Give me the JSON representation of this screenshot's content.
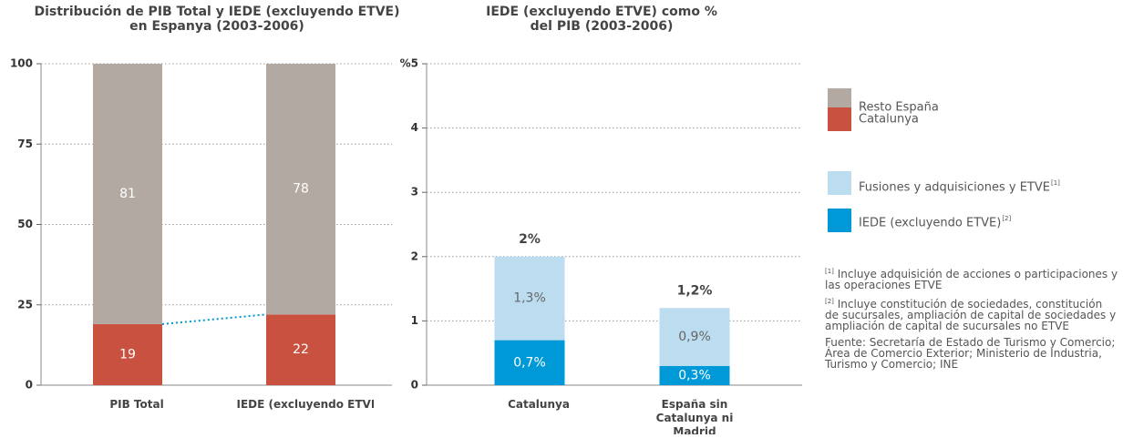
{
  "chart_data": [
    {
      "type": "stacked_bar",
      "title": [
        "Distribución de PIB Total y IEDE (excluyendo ETVE)",
        "en Espanya (2003-2006)"
      ],
      "categories": [
        "PIB Total",
        "IEDE (excluyendo ETVE)"
      ],
      "series": [
        {
          "name": "Catalunya",
          "color": "#c9513f",
          "label_color": "#ffffff",
          "values": [
            19,
            22
          ]
        },
        {
          "name": "Resto España",
          "color": "#b3a9a3",
          "label_color": "#ffffff",
          "values": [
            81,
            78
          ]
        }
      ],
      "ylim": [
        0,
        100
      ],
      "yticks": [
        0,
        25,
        50,
        75,
        100
      ],
      "grid": true
    },
    {
      "type": "stacked_bar",
      "title": [
        "IEDE (excluyendo ETVE) como %",
        "del PIB (2003-2006)"
      ],
      "categories": [
        "Catalunya",
        "España sin Catalunya ni Madrid"
      ],
      "series": [
        {
          "name": "IEDE (excluyendo ETVE)",
          "note_ref": "[2]",
          "color": "#0099d8",
          "label_color": "#ffffff",
          "values": [
            0.7,
            0.3
          ],
          "value_labels": [
            "0,7%",
            "0,3%"
          ]
        },
        {
          "name": "Fusiones y adquisiciones y ETVE",
          "note_ref": "[1]",
          "color": "#bcdcf0",
          "label_color": "#666666",
          "values": [
            1.3,
            0.9
          ],
          "value_labels": [
            "1,3%",
            "0,9%"
          ]
        }
      ],
      "totals": {
        "values": [
          2,
          1.2
        ],
        "value_labels": [
          "2%",
          "1,2%"
        ]
      },
      "ylim": [
        0,
        5
      ],
      "yticks": [
        0,
        1,
        2,
        3,
        4,
        {
          "value": 5,
          "label": "%5"
        }
      ],
      "grid": true
    }
  ],
  "notes": [
    {
      "ref": "[1]",
      "text": "Incluye adquisición de acciones o participaciones y las operaciones ETVE"
    },
    {
      "ref": "[2]",
      "text": "Incluye constitución de sociedades, constitución de sucursales, ampliación de capital de sociedades y ampliación de capital de sucursales no ETVE"
    }
  ],
  "source": "Fuente: Secretaría de Estado de Turismo y Comercio; Área de Comercio Exterior; Ministerio de Industria, Turismo y Comercio; INE"
}
